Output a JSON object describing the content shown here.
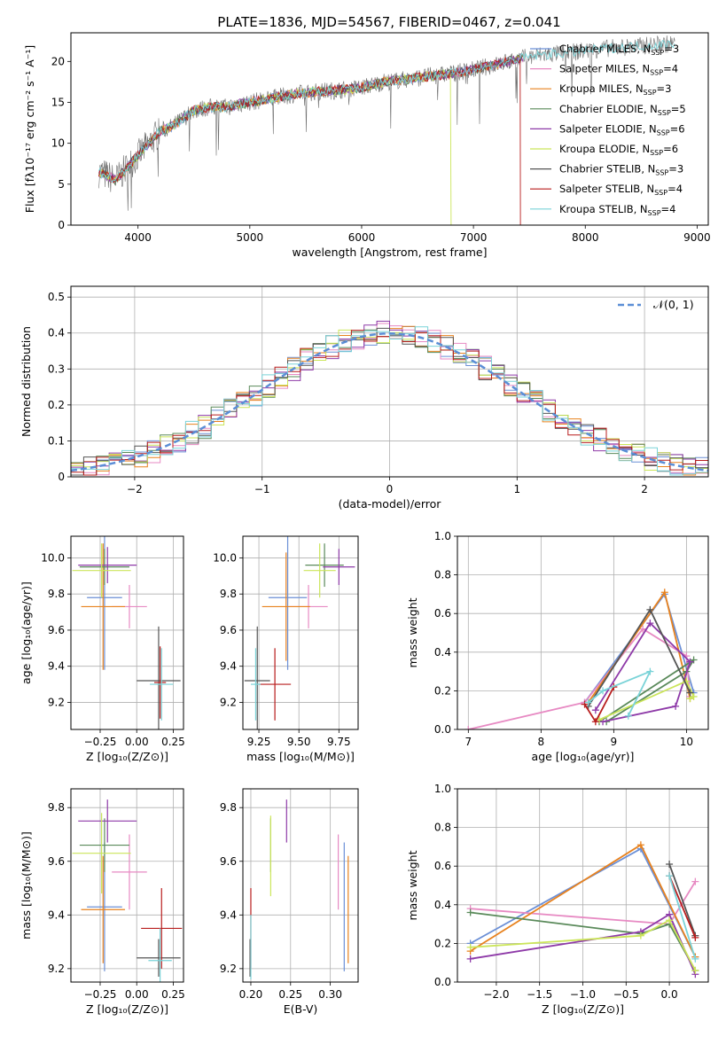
{
  "figure_title": "PLATE=1836, MJD=54567, FIBERID=0467, z=0.041",
  "models": [
    {
      "name": "Chabrier MILES, N",
      "sub": "SSP",
      "tail": "=3",
      "color": "#6b8fd6"
    },
    {
      "name": "Salpeter MILES, N",
      "sub": "SSP",
      "tail": "=4",
      "color": "#e78ac3"
    },
    {
      "name": "Kroupa MILES, N",
      "sub": "SSP",
      "tail": "=3",
      "color": "#e8821e"
    },
    {
      "name": "Chabrier ELODIE, N",
      "sub": "SSP",
      "tail": "=5",
      "color": "#5a8a5a"
    },
    {
      "name": "Salpeter ELODIE, N",
      "sub": "SSP",
      "tail": "=6",
      "color": "#8e3aa8"
    },
    {
      "name": "Kroupa ELODIE, N",
      "sub": "SSP",
      "tail": "=6",
      "color": "#cbe55a"
    },
    {
      "name": "Chabrier STELIB, N",
      "sub": "SSP",
      "tail": "=3",
      "color": "#555555"
    },
    {
      "name": "Salpeter STELIB, N",
      "sub": "SSP",
      "tail": "=4",
      "color": "#b81d1d"
    },
    {
      "name": "Kroupa STELIB, N",
      "sub": "SSP",
      "tail": "=4",
      "color": "#7ad3d8"
    }
  ],
  "chart_data": [
    {
      "id": "spectrum",
      "type": "line",
      "xlabel": "wavelength [Angstrom, rest frame]",
      "ylabel": "Flux [fλ10⁻¹⁷ erg cm⁻² s⁻¹ A⁻¹]",
      "xlim": [
        3400,
        9100
      ],
      "ylim": [
        0,
        23.5
      ],
      "xticks": [
        4000,
        5000,
        6000,
        7000,
        8000,
        9000
      ],
      "yticks": [
        0,
        5,
        10,
        15,
        20
      ],
      "x": [
        3650,
        3700,
        3800,
        3900,
        4000,
        4100,
        4200,
        4300,
        4400,
        4500,
        4600,
        4700,
        4800,
        4900,
        5000,
        5200,
        5400,
        5600,
        5800,
        6000,
        6200,
        6400,
        6600,
        6800,
        7000,
        7200,
        7400,
        7600,
        7800,
        8000,
        8200,
        8400,
        8600,
        8800
      ],
      "y": [
        6.5,
        6.2,
        5.5,
        7.0,
        8.5,
        10.0,
        11.5,
        12.0,
        13.0,
        14.0,
        14.3,
        14.5,
        14.4,
        14.8,
        15.0,
        15.5,
        16.0,
        16.3,
        16.5,
        16.8,
        17.5,
        17.8,
        18.2,
        18.5,
        19.0,
        19.6,
        20.3,
        20.8,
        21.0,
        21.3,
        21.6,
        21.8,
        22.0,
        22.2
      ],
      "grid": false,
      "legend_position": "right"
    },
    {
      "id": "residuals",
      "type": "line",
      "xlabel": "(data-model)/error",
      "ylabel": "Normed distribution",
      "xlim": [
        -2.5,
        2.5
      ],
      "ylim": [
        0,
        0.53
      ],
      "xticks": [
        -2,
        -1,
        0,
        1,
        2
      ],
      "yticks": [
        0.0,
        0.1,
        0.2,
        0.3,
        0.4,
        0.5
      ],
      "reference_label": "𝒩(0, 1)",
      "grid": true,
      "legend_position": "top-right"
    },
    {
      "id": "age_vs_Z",
      "type": "scatter",
      "xlabel": "Z [log₁₀(Z/Z⊙)]",
      "ylabel": "age  [log₁₀(age/yr)]",
      "xlim": [
        -0.45,
        0.32
      ],
      "ylim": [
        9.05,
        10.12
      ],
      "xticks": [
        -0.25,
        0.0,
        0.25
      ],
      "xticklabels": [
        "−0.25",
        "0.00",
        "0.25"
      ],
      "yticks": [
        9.2,
        9.4,
        9.6,
        9.8,
        10.0
      ],
      "yticklabels": [
        "9.2",
        "9.4",
        "9.6",
        "9.8",
        "10.0"
      ],
      "points": [
        {
          "x": -0.22,
          "y": 9.78,
          "xerr": 0.12,
          "yerr": 0.4,
          "c": 0
        },
        {
          "x": -0.05,
          "y": 9.73,
          "xerr": 0.12,
          "yerr": 0.12,
          "c": 1
        },
        {
          "x": -0.23,
          "y": 9.73,
          "xerr": 0.15,
          "yerr": 0.35,
          "c": 2
        },
        {
          "x": -0.22,
          "y": 9.95,
          "xerr": 0.17,
          "yerr": 0.1,
          "c": 3
        },
        {
          "x": -0.2,
          "y": 9.96,
          "xerr": 0.2,
          "yerr": 0.1,
          "c": 4
        },
        {
          "x": -0.24,
          "y": 9.93,
          "xerr": 0.2,
          "yerr": 0.15,
          "c": 5
        },
        {
          "x": 0.15,
          "y": 9.32,
          "xerr": 0.15,
          "yerr": 0.3,
          "c": 6
        },
        {
          "x": 0.16,
          "y": 9.31,
          "xerr": 0.04,
          "yerr": 0.2,
          "c": 7
        },
        {
          "x": 0.17,
          "y": 9.3,
          "xerr": 0.08,
          "yerr": 0.2,
          "c": 8
        }
      ],
      "grid": true
    },
    {
      "id": "age_vs_mass",
      "type": "scatter",
      "xlabel": "mass [log₁₀(M/M⊙)]",
      "ylabel": "",
      "xlim": [
        9.15,
        9.87
      ],
      "ylim": [
        9.05,
        10.12
      ],
      "xticks": [
        9.25,
        9.5,
        9.75
      ],
      "xticklabels": [
        "9.25",
        "9.50",
        "9.75"
      ],
      "yticks": [
        9.2,
        9.4,
        9.6,
        9.8,
        10.0
      ],
      "yticklabels": [
        "9.2",
        "9.4",
        "9.6",
        "9.8",
        "10.0"
      ],
      "points": [
        {
          "x": 9.43,
          "y": 9.78,
          "xerr": 0.12,
          "yerr": 0.4,
          "c": 0
        },
        {
          "x": 9.56,
          "y": 9.73,
          "xerr": 0.12,
          "yerr": 0.12,
          "c": 1
        },
        {
          "x": 9.42,
          "y": 9.73,
          "xerr": 0.15,
          "yerr": 0.3,
          "c": 2
        },
        {
          "x": 9.66,
          "y": 9.96,
          "xerr": 0.12,
          "yerr": 0.12,
          "c": 3
        },
        {
          "x": 9.75,
          "y": 9.95,
          "xerr": 0.1,
          "yerr": 0.1,
          "c": 4
        },
        {
          "x": 9.63,
          "y": 9.93,
          "xerr": 0.1,
          "yerr": 0.15,
          "c": 5
        },
        {
          "x": 9.24,
          "y": 9.32,
          "xerr": 0.08,
          "yerr": 0.3,
          "c": 6
        },
        {
          "x": 9.35,
          "y": 9.3,
          "xerr": 0.1,
          "yerr": 0.2,
          "c": 7
        },
        {
          "x": 9.23,
          "y": 9.3,
          "xerr": 0.03,
          "yerr": 0.2,
          "c": 8
        }
      ],
      "grid": true
    },
    {
      "id": "mass_weight_vs_age",
      "type": "line",
      "xlabel": "age  [log₁₀(age/yr)]",
      "ylabel": "mass weight",
      "xlim": [
        6.85,
        10.3
      ],
      "ylim": [
        0,
        1.0
      ],
      "xticks": [
        7,
        8,
        9,
        10
      ],
      "yticks": [
        0.0,
        0.2,
        0.4,
        0.6,
        0.8,
        1.0
      ],
      "yticklabels": [
        "0.0",
        "0.2",
        "0.4",
        "0.6",
        "0.8",
        "1.0"
      ],
      "series": [
        {
          "c": 0,
          "x": [
            8.6,
            9.7,
            10.1
          ],
          "y": [
            0.14,
            0.7,
            0.19
          ]
        },
        {
          "c": 1,
          "x": [
            7.0,
            8.6,
            9.4,
            10.0,
            10.05
          ],
          "y": [
            0.0,
            0.14,
            0.52,
            0.38,
            0.17
          ]
        },
        {
          "c": 2,
          "x": [
            8.65,
            9.7,
            10.05
          ],
          "y": [
            0.14,
            0.71,
            0.16
          ]
        },
        {
          "c": 3,
          "x": [
            8.9,
            10.0,
            10.1,
            8.8
          ],
          "y": [
            0.04,
            0.3,
            0.36,
            0.04
          ]
        },
        {
          "c": 4,
          "x": [
            8.75,
            9.5,
            10.05,
            9.85,
            8.85
          ],
          "y": [
            0.1,
            0.55,
            0.35,
            0.12,
            0.04
          ]
        },
        {
          "c": 5,
          "x": [
            8.8,
            10.0,
            10.1,
            10.05
          ],
          "y": [
            0.05,
            0.25,
            0.17,
            0.16
          ]
        },
        {
          "c": 6,
          "x": [
            8.65,
            9.5,
            10.05
          ],
          "y": [
            0.12,
            0.62,
            0.19
          ]
        },
        {
          "c": 7,
          "x": [
            8.6,
            8.75,
            9.0
          ],
          "y": [
            0.13,
            0.04,
            0.22
          ]
        },
        {
          "c": 8,
          "x": [
            8.65,
            8.85,
            9.5,
            9.2
          ],
          "y": [
            0.14,
            0.2,
            0.3,
            0.07
          ]
        }
      ],
      "grid": true
    },
    {
      "id": "mass_vs_Z",
      "type": "scatter",
      "xlabel": "Z [log₁₀(Z/Z⊙)]",
      "ylabel": "mass [log₁₀(M/M⊙)]",
      "xlim": [
        -0.45,
        0.32
      ],
      "ylim": [
        9.15,
        9.87
      ],
      "xticks": [
        -0.25,
        0.0,
        0.25
      ],
      "xticklabels": [
        "−0.25",
        "0.00",
        "0.25"
      ],
      "yticks": [
        9.2,
        9.4,
        9.6,
        9.8
      ],
      "yticklabels": [
        "9.2",
        "9.4",
        "9.6",
        "9.8"
      ],
      "points": [
        {
          "x": -0.22,
          "y": 9.43,
          "xerr": 0.12,
          "yerr": 0.24,
          "c": 0
        },
        {
          "x": -0.05,
          "y": 9.56,
          "xerr": 0.12,
          "yerr": 0.14,
          "c": 1
        },
        {
          "x": -0.23,
          "y": 9.42,
          "xerr": 0.15,
          "yerr": 0.2,
          "c": 2
        },
        {
          "x": -0.22,
          "y": 9.66,
          "xerr": 0.17,
          "yerr": 0.1,
          "c": 3
        },
        {
          "x": -0.2,
          "y": 9.75,
          "xerr": 0.2,
          "yerr": 0.08,
          "c": 4
        },
        {
          "x": -0.24,
          "y": 9.63,
          "xerr": 0.2,
          "yerr": 0.15,
          "c": 5
        },
        {
          "x": 0.15,
          "y": 9.24,
          "xerr": 0.15,
          "yerr": 0.07,
          "c": 6
        },
        {
          "x": 0.17,
          "y": 9.35,
          "xerr": 0.14,
          "yerr": 0.15,
          "c": 7
        },
        {
          "x": 0.16,
          "y": 9.23,
          "xerr": 0.08,
          "yerr": 0.12,
          "c": 8
        }
      ],
      "grid": true
    },
    {
      "id": "ebv",
      "type": "scatter",
      "xlabel": "E(B-V)",
      "ylabel": "",
      "xlim": [
        0.19,
        0.335
      ],
      "ylim": [
        9.15,
        9.87
      ],
      "xticks": [
        0.2,
        0.25,
        0.3
      ],
      "xticklabels": [
        "0.20",
        "0.25",
        "0.30"
      ],
      "yticks": [
        9.2,
        9.4,
        9.6,
        9.8
      ],
      "yticklabels": [
        "9.2",
        "9.4",
        "9.6",
        "9.8"
      ],
      "points": [
        {
          "x": 0.3175,
          "y": 9.43,
          "yerr": 0.24,
          "c": 0
        },
        {
          "x": 0.31,
          "y": 9.56,
          "yerr": 0.14,
          "c": 1
        },
        {
          "x": 0.3225,
          "y": 9.42,
          "yerr": 0.2,
          "c": 2
        },
        {
          "x": 0.225,
          "y": 9.66,
          "yerr": 0.1,
          "c": 3
        },
        {
          "x": 0.245,
          "y": 9.75,
          "yerr": 0.08,
          "c": 4
        },
        {
          "x": 0.225,
          "y": 9.62,
          "yerr": 0.15,
          "c": 5
        },
        {
          "x": 0.199,
          "y": 9.24,
          "yerr": 0.07,
          "c": 6
        },
        {
          "x": 0.2,
          "y": 9.35,
          "yerr": 0.15,
          "c": 7
        },
        {
          "x": 0.2,
          "y": 9.28,
          "yerr": 0.12,
          "c": 8
        }
      ],
      "grid": true
    },
    {
      "id": "mass_weight_vs_Z",
      "type": "line",
      "xlabel": "Z [log₁₀(Z/Z⊙)]",
      "ylabel": "mass weight",
      "xlim": [
        -2.45,
        0.45
      ],
      "ylim": [
        0,
        1.0
      ],
      "xticks": [
        -2.0,
        -1.5,
        -1.0,
        -0.5,
        0.0
      ],
      "xticklabels": [
        "−2.0",
        "−1.5",
        "−1.0",
        "−0.5",
        "0.0"
      ],
      "yticks": [
        0.0,
        0.2,
        0.4,
        0.6,
        0.8,
        1.0
      ],
      "yticklabels": [
        "0.0",
        "0.2",
        "0.4",
        "0.6",
        "0.8",
        "1.0"
      ],
      "series": [
        {
          "c": 0,
          "x": [
            -2.3,
            -0.33,
            0.3
          ],
          "y": [
            0.2,
            0.69,
            0.13
          ]
        },
        {
          "c": 1,
          "x": [
            -2.3,
            0.0,
            0.3
          ],
          "y": [
            0.38,
            0.3,
            0.52
          ]
        },
        {
          "c": 2,
          "x": [
            -2.3,
            -0.33,
            0.3
          ],
          "y": [
            0.16,
            0.71,
            0.13
          ]
        },
        {
          "c": 3,
          "x": [
            -2.3,
            -0.33,
            0.0,
            0.3
          ],
          "y": [
            0.36,
            0.25,
            0.3,
            0.06
          ]
        },
        {
          "c": 4,
          "x": [
            -2.3,
            -0.33,
            0.0,
            0.3
          ],
          "y": [
            0.12,
            0.26,
            0.35,
            0.04
          ]
        },
        {
          "c": 5,
          "x": [
            -2.3,
            -0.33,
            0.0,
            0.3
          ],
          "y": [
            0.18,
            0.24,
            0.32,
            0.06
          ]
        },
        {
          "c": 6,
          "x": [
            0.0,
            0.3
          ],
          "y": [
            0.61,
            0.24
          ]
        },
        {
          "c": 7,
          "x": [
            0.0,
            0.3
          ],
          "y": [
            0.55,
            0.23
          ]
        },
        {
          "c": 8,
          "x": [
            0.0,
            0.3
          ],
          "y": [
            0.55,
            0.12
          ]
        }
      ],
      "grid": true
    }
  ]
}
